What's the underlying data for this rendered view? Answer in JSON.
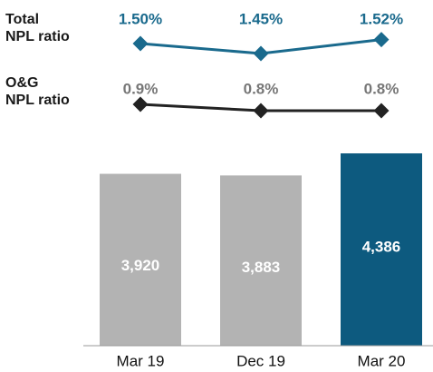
{
  "chart_data": [
    {
      "type": "bar",
      "categories": [
        "Mar 19",
        "Dec 19",
        "Mar 20"
      ],
      "values": [
        3920,
        3883,
        4386
      ],
      "value_labels": [
        "3,920",
        "3,883",
        "4,386"
      ],
      "colors": [
        "#b3b3b3",
        "#b3b3b3",
        "#0d5a7f"
      ],
      "ylim": [
        0,
        4600
      ]
    },
    {
      "type": "line",
      "label_lines": [
        "Total",
        "NPL ratio"
      ],
      "values": [
        1.5,
        1.45,
        1.52
      ],
      "value_labels": [
        "1.50%",
        "1.45%",
        "1.52%"
      ],
      "color": "#1a6a8d",
      "ylim": [
        1.4,
        1.6
      ]
    },
    {
      "type": "line",
      "label_lines": [
        "O&G",
        "NPL ratio"
      ],
      "values": [
        0.9,
        0.8,
        0.8
      ],
      "value_labels": [
        "0.9%",
        "0.8%",
        "0.8%"
      ],
      "color": "#222222",
      "ylim": [
        0.5,
        1.0
      ]
    }
  ]
}
